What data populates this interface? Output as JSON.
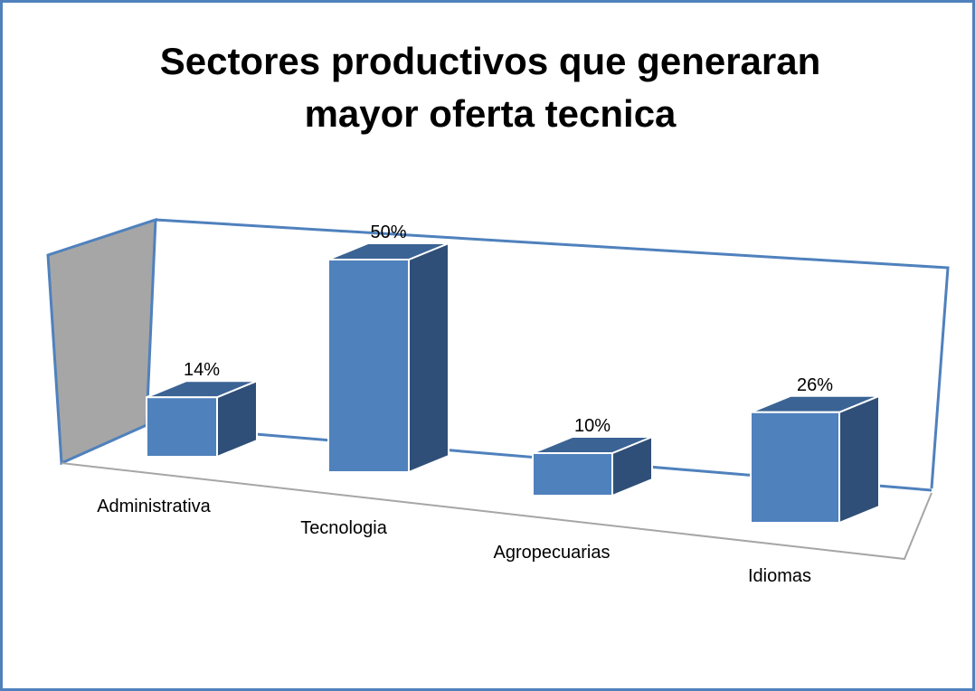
{
  "chart_data": {
    "type": "bar3d",
    "title": "Sectores productivos que generaran mayor oferta tecnica",
    "categories": [
      "Administrativa",
      "Tecnologia",
      "Agropecuarias",
      "Idiomas"
    ],
    "values": [
      14,
      50,
      10,
      26
    ],
    "value_labels": [
      "14%",
      "50%",
      "10%",
      "26%"
    ],
    "color": "#4f81bd"
  }
}
